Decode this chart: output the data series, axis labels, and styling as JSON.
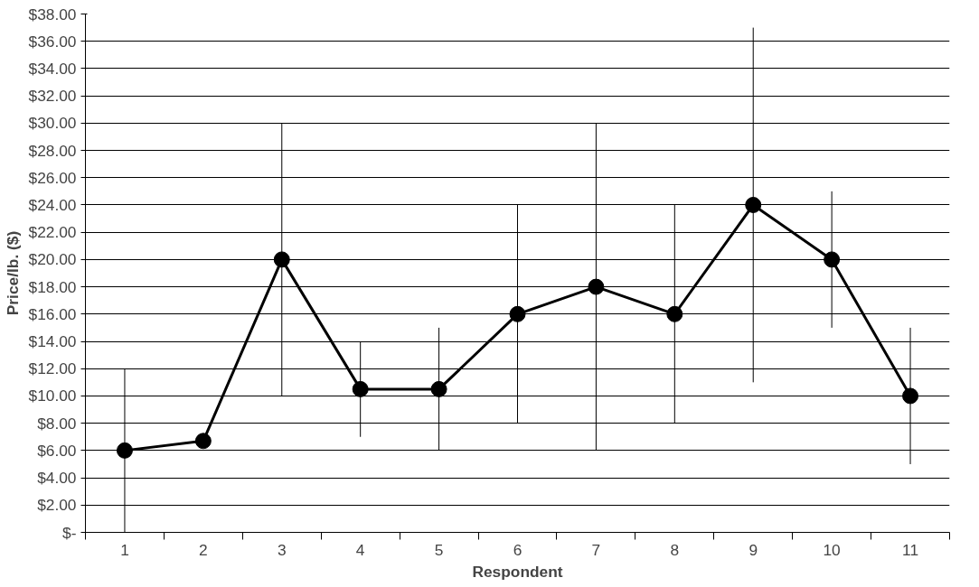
{
  "chart_data": {
    "type": "line",
    "xlabel": "Respondent",
    "ylabel": "Price/lb. ($)",
    "categories": [
      "1",
      "2",
      "3",
      "4",
      "5",
      "6",
      "7",
      "8",
      "9",
      "10",
      "11"
    ],
    "series": [
      {
        "color": "#000000",
        "values": [
          6,
          6.7,
          20,
          10.5,
          10.5,
          16,
          18,
          16,
          24,
          20,
          10
        ],
        "errors": [
          [
            0,
            12
          ],
          null,
          [
            10,
            30
          ],
          [
            7,
            14
          ],
          [
            6,
            15
          ],
          [
            8,
            24
          ],
          [
            6,
            30
          ],
          [
            8,
            24
          ],
          [
            11,
            37
          ],
          [
            15,
            25
          ],
          [
            5,
            15
          ]
        ]
      }
    ],
    "ylim": [
      0,
      38
    ],
    "yticks": [
      {
        "value": 0,
        "label": "$-"
      },
      {
        "value": 2,
        "label": "$2.00"
      },
      {
        "value": 4,
        "label": "$4.00"
      },
      {
        "value": 6,
        "label": "$6.00"
      },
      {
        "value": 8,
        "label": "$8.00"
      },
      {
        "value": 10,
        "label": "$10.00"
      },
      {
        "value": 12,
        "label": "$12.00"
      },
      {
        "value": 14,
        "label": "$14.00"
      },
      {
        "value": 16,
        "label": "$16.00"
      },
      {
        "value": 18,
        "label": "$18.00"
      },
      {
        "value": 20,
        "label": "$20.00"
      },
      {
        "value": 22,
        "label": "$22.00"
      },
      {
        "value": 24,
        "label": "$24.00"
      },
      {
        "value": 26,
        "label": "$26.00"
      },
      {
        "value": 28,
        "label": "$28.00"
      },
      {
        "value": 30,
        "label": "$30.00"
      },
      {
        "value": 32,
        "label": "$32.00"
      },
      {
        "value": 34,
        "label": "$34.00"
      },
      {
        "value": 36,
        "label": "$36.00"
      },
      {
        "value": 38,
        "label": "$38.00"
      }
    ],
    "grid": "y",
    "marker": "circle",
    "line_style": "solid"
  }
}
